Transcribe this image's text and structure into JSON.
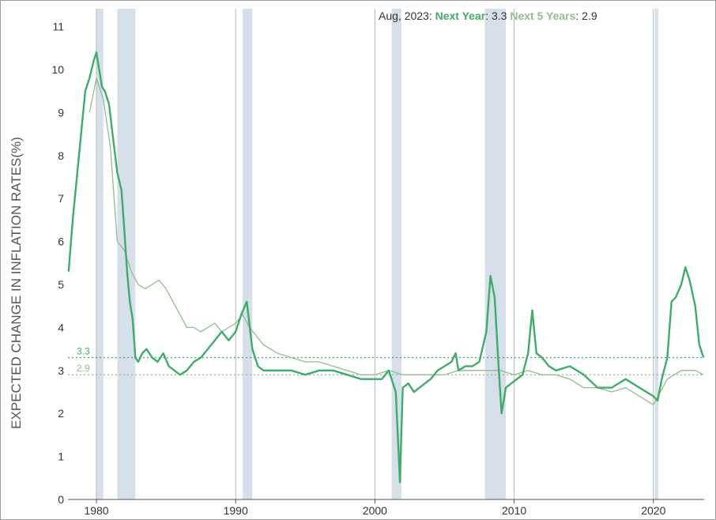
{
  "chart_data": {
    "type": "line",
    "title": "",
    "ylabel": "EXPECTED CHANGE IN INFLATION RATES(%)",
    "xlabel": "",
    "xlim": [
      1978.0,
      2023.7
    ],
    "ylim": [
      0,
      11.3
    ],
    "x_ticks": [
      "1980",
      "1990",
      "2000",
      "2010",
      "2020"
    ],
    "y_ticks": [
      "0",
      "1",
      "2",
      "3",
      "4",
      "5",
      "6",
      "7",
      "8",
      "9",
      "10",
      "11"
    ],
    "legend": {
      "date": "Aug, 2023: ",
      "series1_label": "Next Year",
      "series1_value": ": 3.3 ",
      "series2_label": "Next 5 Years",
      "series2_value": ": 2.9"
    },
    "reference_lines": [
      {
        "label": "3.3",
        "value": 3.3,
        "color": "#3dae6a"
      },
      {
        "label": "2.9",
        "value": 2.9,
        "color": "#8fbf8a"
      }
    ],
    "recessions": [
      [
        1980.0,
        1980.5
      ],
      [
        1981.5,
        1982.8
      ],
      [
        1990.5,
        1991.2
      ],
      [
        2001.2,
        2001.9
      ],
      [
        2007.9,
        2009.4
      ],
      [
        2020.1,
        2020.35
      ]
    ],
    "event_lines": [
      1980.0,
      1990.0,
      2000.0,
      2010.0,
      2020.0
    ],
    "colors": {
      "series1": "#3dae6a",
      "series2": "#8fbf8a",
      "recession": "#d7dfea",
      "event_line": "#b8b8b8",
      "axis": "#555555"
    },
    "series": [
      {
        "name": "Next Year",
        "color": "#3dae6a",
        "x": [
          1978.0,
          1978.3,
          1978.6,
          1978.9,
          1979.2,
          1979.5,
          1979.8,
          1980.0,
          1980.2,
          1980.4,
          1980.6,
          1980.9,
          1981.2,
          1981.5,
          1981.8,
          1982.0,
          1982.2,
          1982.4,
          1982.6,
          1982.8,
          1983.0,
          1983.3,
          1983.6,
          1984.0,
          1984.4,
          1984.8,
          1985.2,
          1985.6,
          1986.0,
          1986.5,
          1987.0,
          1987.5,
          1988.0,
          1988.5,
          1989.0,
          1989.5,
          1990.0,
          1990.4,
          1990.8,
          1991.2,
          1991.6,
          1992.0,
          1993.0,
          1994.0,
          1995.0,
          1996.0,
          1997.0,
          1998.0,
          1999.0,
          2000.0,
          2000.5,
          2001.0,
          2001.5,
          2001.8,
          2002.0,
          2002.4,
          2002.8,
          2003.2,
          2003.6,
          2004.0,
          2004.5,
          2005.0,
          2005.5,
          2005.8,
          2006.0,
          2006.5,
          2007.0,
          2007.5,
          2008.0,
          2008.3,
          2008.6,
          2008.9,
          2009.1,
          2009.4,
          2009.8,
          2010.2,
          2010.6,
          2011.0,
          2011.3,
          2011.6,
          2012.0,
          2012.5,
          2013.0,
          2014.0,
          2015.0,
          2016.0,
          2017.0,
          2018.0,
          2019.0,
          2020.0,
          2020.3,
          2020.6,
          2021.0,
          2021.3,
          2021.6,
          2022.0,
          2022.3,
          2022.6,
          2023.0,
          2023.3,
          2023.6
        ],
        "y": [
          5.3,
          6.5,
          7.5,
          8.5,
          9.5,
          9.8,
          10.2,
          10.4,
          10.0,
          9.6,
          9.5,
          9.2,
          8.4,
          7.6,
          7.2,
          6.3,
          5.3,
          4.6,
          4.2,
          3.3,
          3.2,
          3.4,
          3.5,
          3.3,
          3.2,
          3.4,
          3.1,
          3.0,
          2.9,
          3.0,
          3.2,
          3.3,
          3.5,
          3.7,
          3.9,
          3.7,
          3.9,
          4.3,
          4.6,
          3.5,
          3.1,
          3.0,
          3.0,
          3.0,
          2.9,
          3.0,
          3.0,
          2.9,
          2.8,
          2.8,
          2.8,
          3.0,
          2.5,
          0.4,
          2.6,
          2.7,
          2.5,
          2.6,
          2.7,
          2.8,
          3.0,
          3.1,
          3.2,
          3.4,
          3.0,
          3.1,
          3.1,
          3.2,
          3.9,
          5.2,
          4.7,
          3.0,
          2.0,
          2.6,
          2.7,
          2.8,
          2.9,
          3.4,
          4.4,
          3.4,
          3.3,
          3.1,
          3.0,
          3.1,
          2.9,
          2.6,
          2.6,
          2.8,
          2.6,
          2.4,
          2.3,
          2.8,
          3.3,
          4.6,
          4.7,
          5.0,
          5.4,
          5.1,
          4.5,
          3.6,
          3.3
        ]
      },
      {
        "name": "Next 5 Years",
        "color": "#8fbf8a",
        "x": [
          1979.5,
          1980.0,
          1980.5,
          1981.0,
          1981.5,
          1982.0,
          1982.5,
          1983.0,
          1983.5,
          1984.0,
          1984.5,
          1985.0,
          1985.5,
          1986.0,
          1986.5,
          1987.0,
          1987.5,
          1988.0,
          1988.5,
          1989.0,
          1989.5,
          1990.0,
          1990.5,
          1991.0,
          1991.5,
          1992.0,
          1993.0,
          1994.0,
          1995.0,
          1996.0,
          1997.0,
          1998.0,
          1999.0,
          2000.0,
          2001.0,
          2002.0,
          2003.0,
          2004.0,
          2005.0,
          2006.0,
          2007.0,
          2008.0,
          2009.0,
          2010.0,
          2011.0,
          2012.0,
          2013.0,
          2014.0,
          2015.0,
          2016.0,
          2017.0,
          2018.0,
          2019.0,
          2020.0,
          2020.5,
          2021.0,
          2021.5,
          2022.0,
          2022.5,
          2023.0,
          2023.6
        ],
        "y": [
          9.0,
          9.8,
          9.3,
          8.2,
          6.0,
          5.8,
          5.3,
          5.0,
          4.9,
          5.0,
          5.1,
          4.9,
          4.6,
          4.3,
          4.0,
          4.0,
          3.9,
          4.0,
          4.1,
          3.9,
          4.0,
          4.1,
          4.3,
          4.0,
          3.8,
          3.6,
          3.4,
          3.3,
          3.2,
          3.2,
          3.1,
          3.0,
          2.9,
          2.9,
          3.0,
          2.9,
          2.9,
          2.9,
          2.9,
          3.0,
          3.0,
          3.0,
          3.0,
          2.9,
          3.0,
          2.9,
          2.9,
          2.8,
          2.6,
          2.6,
          2.5,
          2.6,
          2.4,
          2.2,
          2.5,
          2.8,
          2.9,
          3.0,
          3.0,
          3.0,
          2.9
        ]
      }
    ]
  }
}
